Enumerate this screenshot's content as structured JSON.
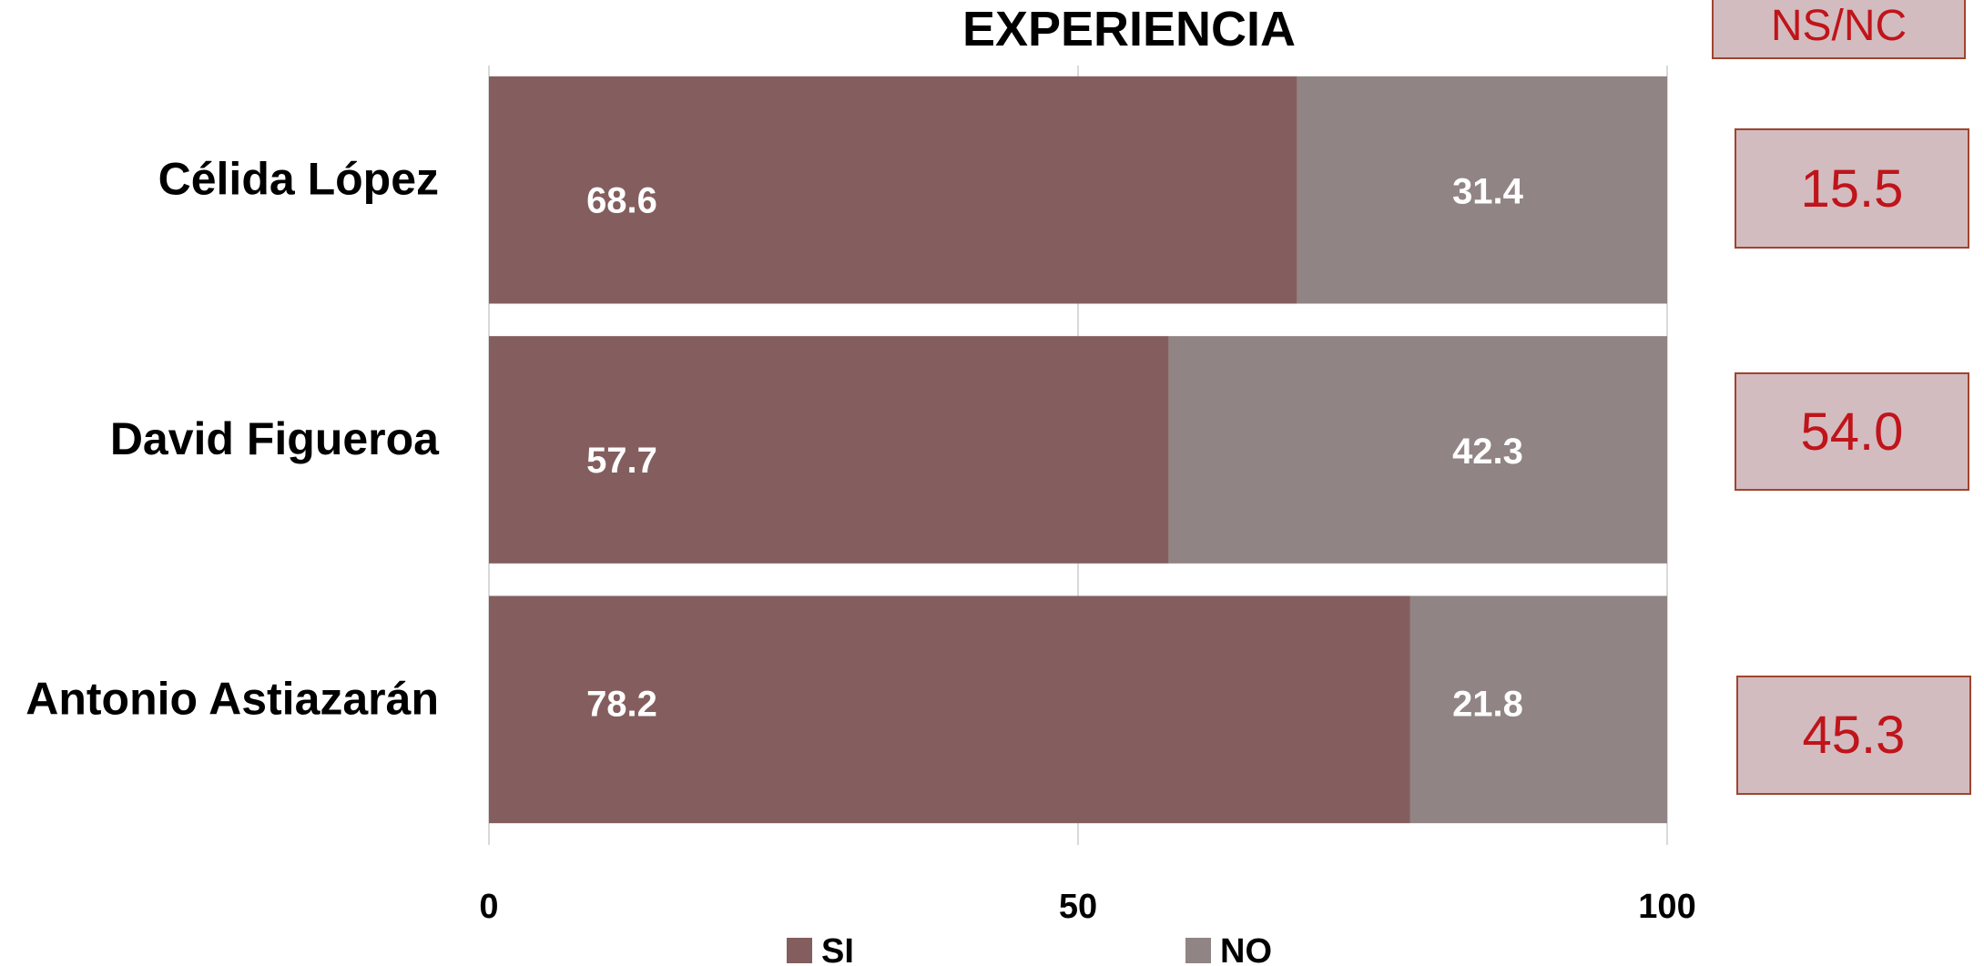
{
  "chart_data": {
    "type": "bar",
    "orientation": "horizontal",
    "stacked": true,
    "title": "EXPERIENCIA",
    "categories": [
      "Célida López",
      "David Figueroa",
      "Antonio Astiazarán"
    ],
    "series": [
      {
        "name": "SI",
        "values": [
          68.6,
          57.7,
          78.2
        ],
        "color": "#845e5e"
      },
      {
        "name": "NO",
        "values": [
          31.4,
          42.3,
          21.8
        ],
        "color": "#908484"
      }
    ],
    "data_labels": [
      [
        "68.6",
        "57.7",
        "78.2"
      ],
      [
        "31.4",
        "42.3",
        "21.8"
      ]
    ],
    "xlim": [
      0,
      100
    ],
    "xticks": [
      "0",
      "50",
      "100"
    ],
    "grid": true,
    "legend": "bottom"
  },
  "nsnc": {
    "header": "NS/NC",
    "values": [
      "15.5",
      "54.0",
      "45.3"
    ]
  },
  "colors": {
    "si": "#845e5e",
    "no": "#908484",
    "nsnc_fill": "#d3bcbf",
    "nsnc_border": "#a0442f",
    "nsnc_text": "#c0141b",
    "grid": "#d9d9d9"
  }
}
